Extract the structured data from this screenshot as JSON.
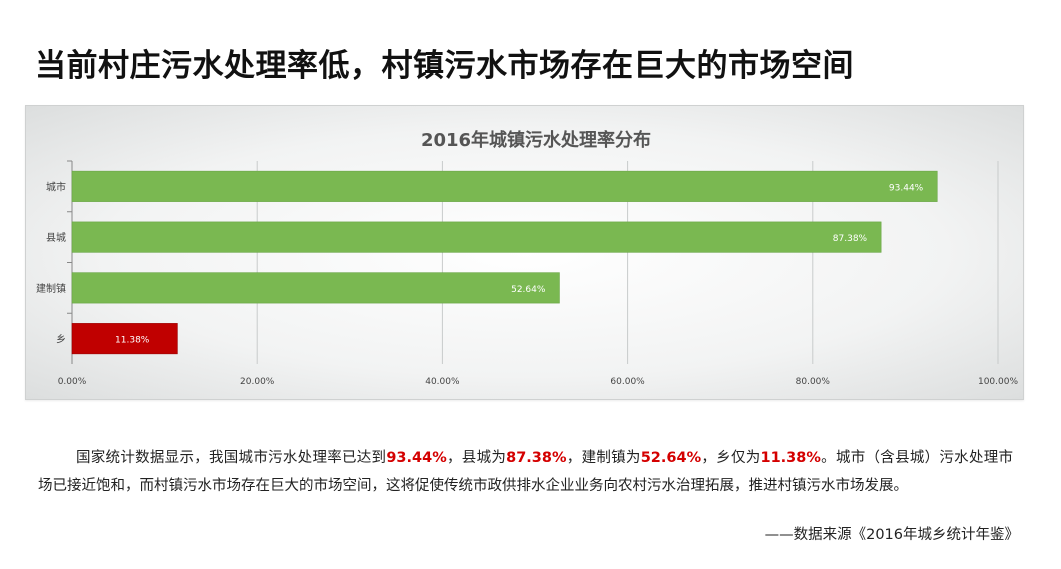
{
  "page": {
    "title": "当前村庄污水处理率低，村镇污水市场存在巨大的市场空间"
  },
  "chart_data": {
    "type": "bar",
    "orientation": "horizontal",
    "title": "2016年城镇污水处理率分布",
    "categories": [
      "城市",
      "县城",
      "建制镇",
      "乡"
    ],
    "values": [
      93.44,
      87.38,
      52.64,
      11.38
    ],
    "value_labels": [
      "93.44%",
      "87.38%",
      "52.64%",
      "11.38%"
    ],
    "bar_colors": [
      "#7ab851",
      "#7ab851",
      "#7ab851",
      "#c00000"
    ],
    "xlim": [
      0,
      100
    ],
    "x_ticks": [
      0,
      20,
      40,
      60,
      80,
      100
    ],
    "x_tick_labels": [
      "0.00%",
      "20.00%",
      "40.00%",
      "60.00%",
      "80.00%",
      "100.00%"
    ],
    "grid": true,
    "legend": "none"
  },
  "description": {
    "parts": [
      {
        "text": "国家统计数据显示，我国城市污水处理率已达到",
        "highlight": false
      },
      {
        "text": "93.44%",
        "highlight": true
      },
      {
        "text": "，县城为",
        "highlight": false
      },
      {
        "text": "87.38%",
        "highlight": true
      },
      {
        "text": "，建制镇为",
        "highlight": false
      },
      {
        "text": "52.64%",
        "highlight": true
      },
      {
        "text": "，乡仅为",
        "highlight": false
      },
      {
        "text": "11.38%",
        "highlight": true
      },
      {
        "text": "。城市（含县城）污水处理市场已接近饱和，而村镇污水市场存在巨大的市场空间，这将促使传统市政供排水企业业务向农村污水治理拓展，推进村镇污水市场发展。",
        "highlight": false
      }
    ]
  },
  "source": {
    "text": "——数据来源《2016年城乡统计年鉴》"
  },
  "colors": {
    "highlight": "#d40000",
    "bar_green": "#7ab851",
    "bar_red": "#c00000"
  }
}
